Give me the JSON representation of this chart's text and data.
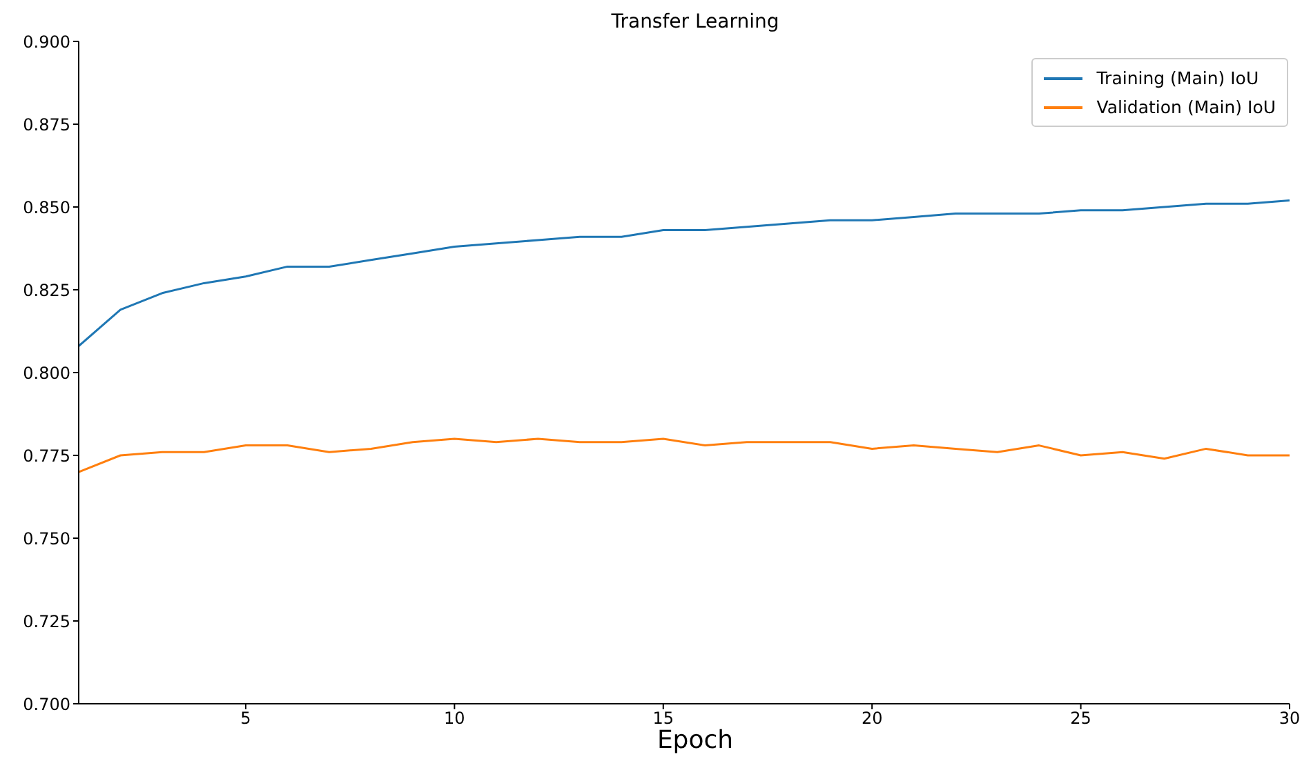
{
  "chart_data": {
    "type": "line",
    "title": "Transfer Learning",
    "xlabel": "Epoch",
    "x": [
      1,
      2,
      3,
      4,
      5,
      6,
      7,
      8,
      9,
      10,
      11,
      12,
      13,
      14,
      15,
      16,
      17,
      18,
      19,
      20,
      21,
      22,
      23,
      24,
      25,
      26,
      27,
      28,
      29,
      30
    ],
    "series": [
      {
        "name": "Training (Main) IoU",
        "color": "#1f77b4",
        "values": [
          0.808,
          0.819,
          0.824,
          0.827,
          0.829,
          0.832,
          0.832,
          0.834,
          0.836,
          0.838,
          0.839,
          0.84,
          0.841,
          0.841,
          0.843,
          0.843,
          0.844,
          0.845,
          0.846,
          0.846,
          0.847,
          0.848,
          0.848,
          0.848,
          0.849,
          0.849,
          0.85,
          0.851,
          0.851,
          0.852
        ]
      },
      {
        "name": "Validation (Main) IoU",
        "color": "#ff7f0e",
        "values": [
          0.77,
          0.775,
          0.776,
          0.776,
          0.778,
          0.778,
          0.776,
          0.777,
          0.779,
          0.78,
          0.779,
          0.78,
          0.779,
          0.779,
          0.78,
          0.778,
          0.779,
          0.779,
          0.779,
          0.777,
          0.778,
          0.777,
          0.776,
          0.778,
          0.775,
          0.776,
          0.774,
          0.777,
          0.775,
          0.775
        ]
      }
    ],
    "xlim": [
      1,
      30
    ],
    "xticks": [
      5,
      10,
      15,
      20,
      25,
      30
    ],
    "ylim": [
      0.7,
      0.9
    ],
    "yticks": [
      {
        "value": 0.7,
        "label": "0.700"
      },
      {
        "value": 0.725,
        "label": "0.725"
      },
      {
        "value": 0.75,
        "label": "0.750"
      },
      {
        "value": 0.775,
        "label": "0.775"
      },
      {
        "value": 0.8,
        "label": "0.800"
      },
      {
        "value": 0.825,
        "label": "0.825"
      },
      {
        "value": 0.85,
        "label": "0.850"
      },
      {
        "value": 0.875,
        "label": "0.875"
      },
      {
        "value": 0.9,
        "label": "0.900"
      }
    ],
    "legend": "top right",
    "grid": false,
    "marker": "none",
    "line_style": "solid"
  }
}
